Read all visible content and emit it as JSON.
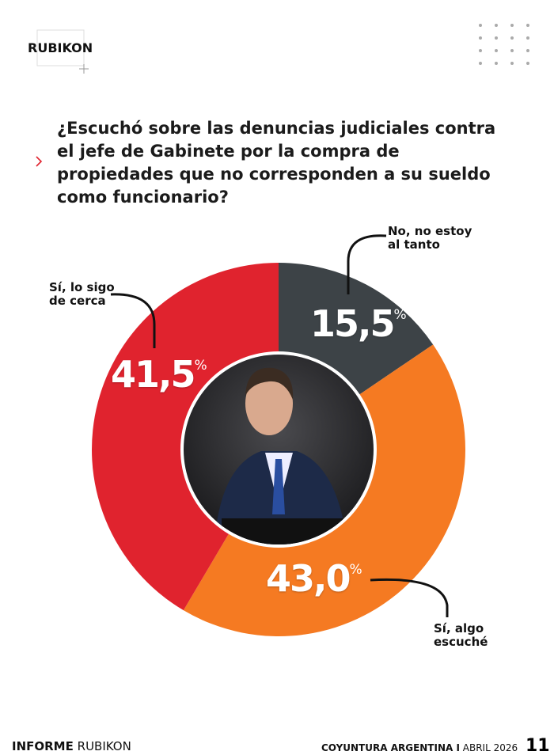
{
  "header": {
    "logo": "RUBIKON"
  },
  "chart_data": {
    "type": "donut",
    "title": "¿Escuchó sobre las denuncias judiciales contra el jefe de Gabinete por la compra de propiedades que no corresponden a su sueldo como funcionario?",
    "categories": [
      "No, no estoy\nal tanto",
      "Sí, algo\nescuché",
      "Sí, lo sigo\nde cerca"
    ],
    "values": [
      15.5,
      43.0,
      41.5
    ],
    "value_labels": [
      "15,5",
      "43,0",
      "41,5"
    ],
    "unit_label": "%",
    "colors": [
      "#3d4347",
      "#f57a22",
      "#e0232e"
    ]
  },
  "footer": {
    "left_bold": "INFORME",
    "left": "RUBIKON",
    "right_bold": "COYUNTURA ARGENTINA I",
    "right": "ABRIL 2026",
    "page": "11"
  }
}
